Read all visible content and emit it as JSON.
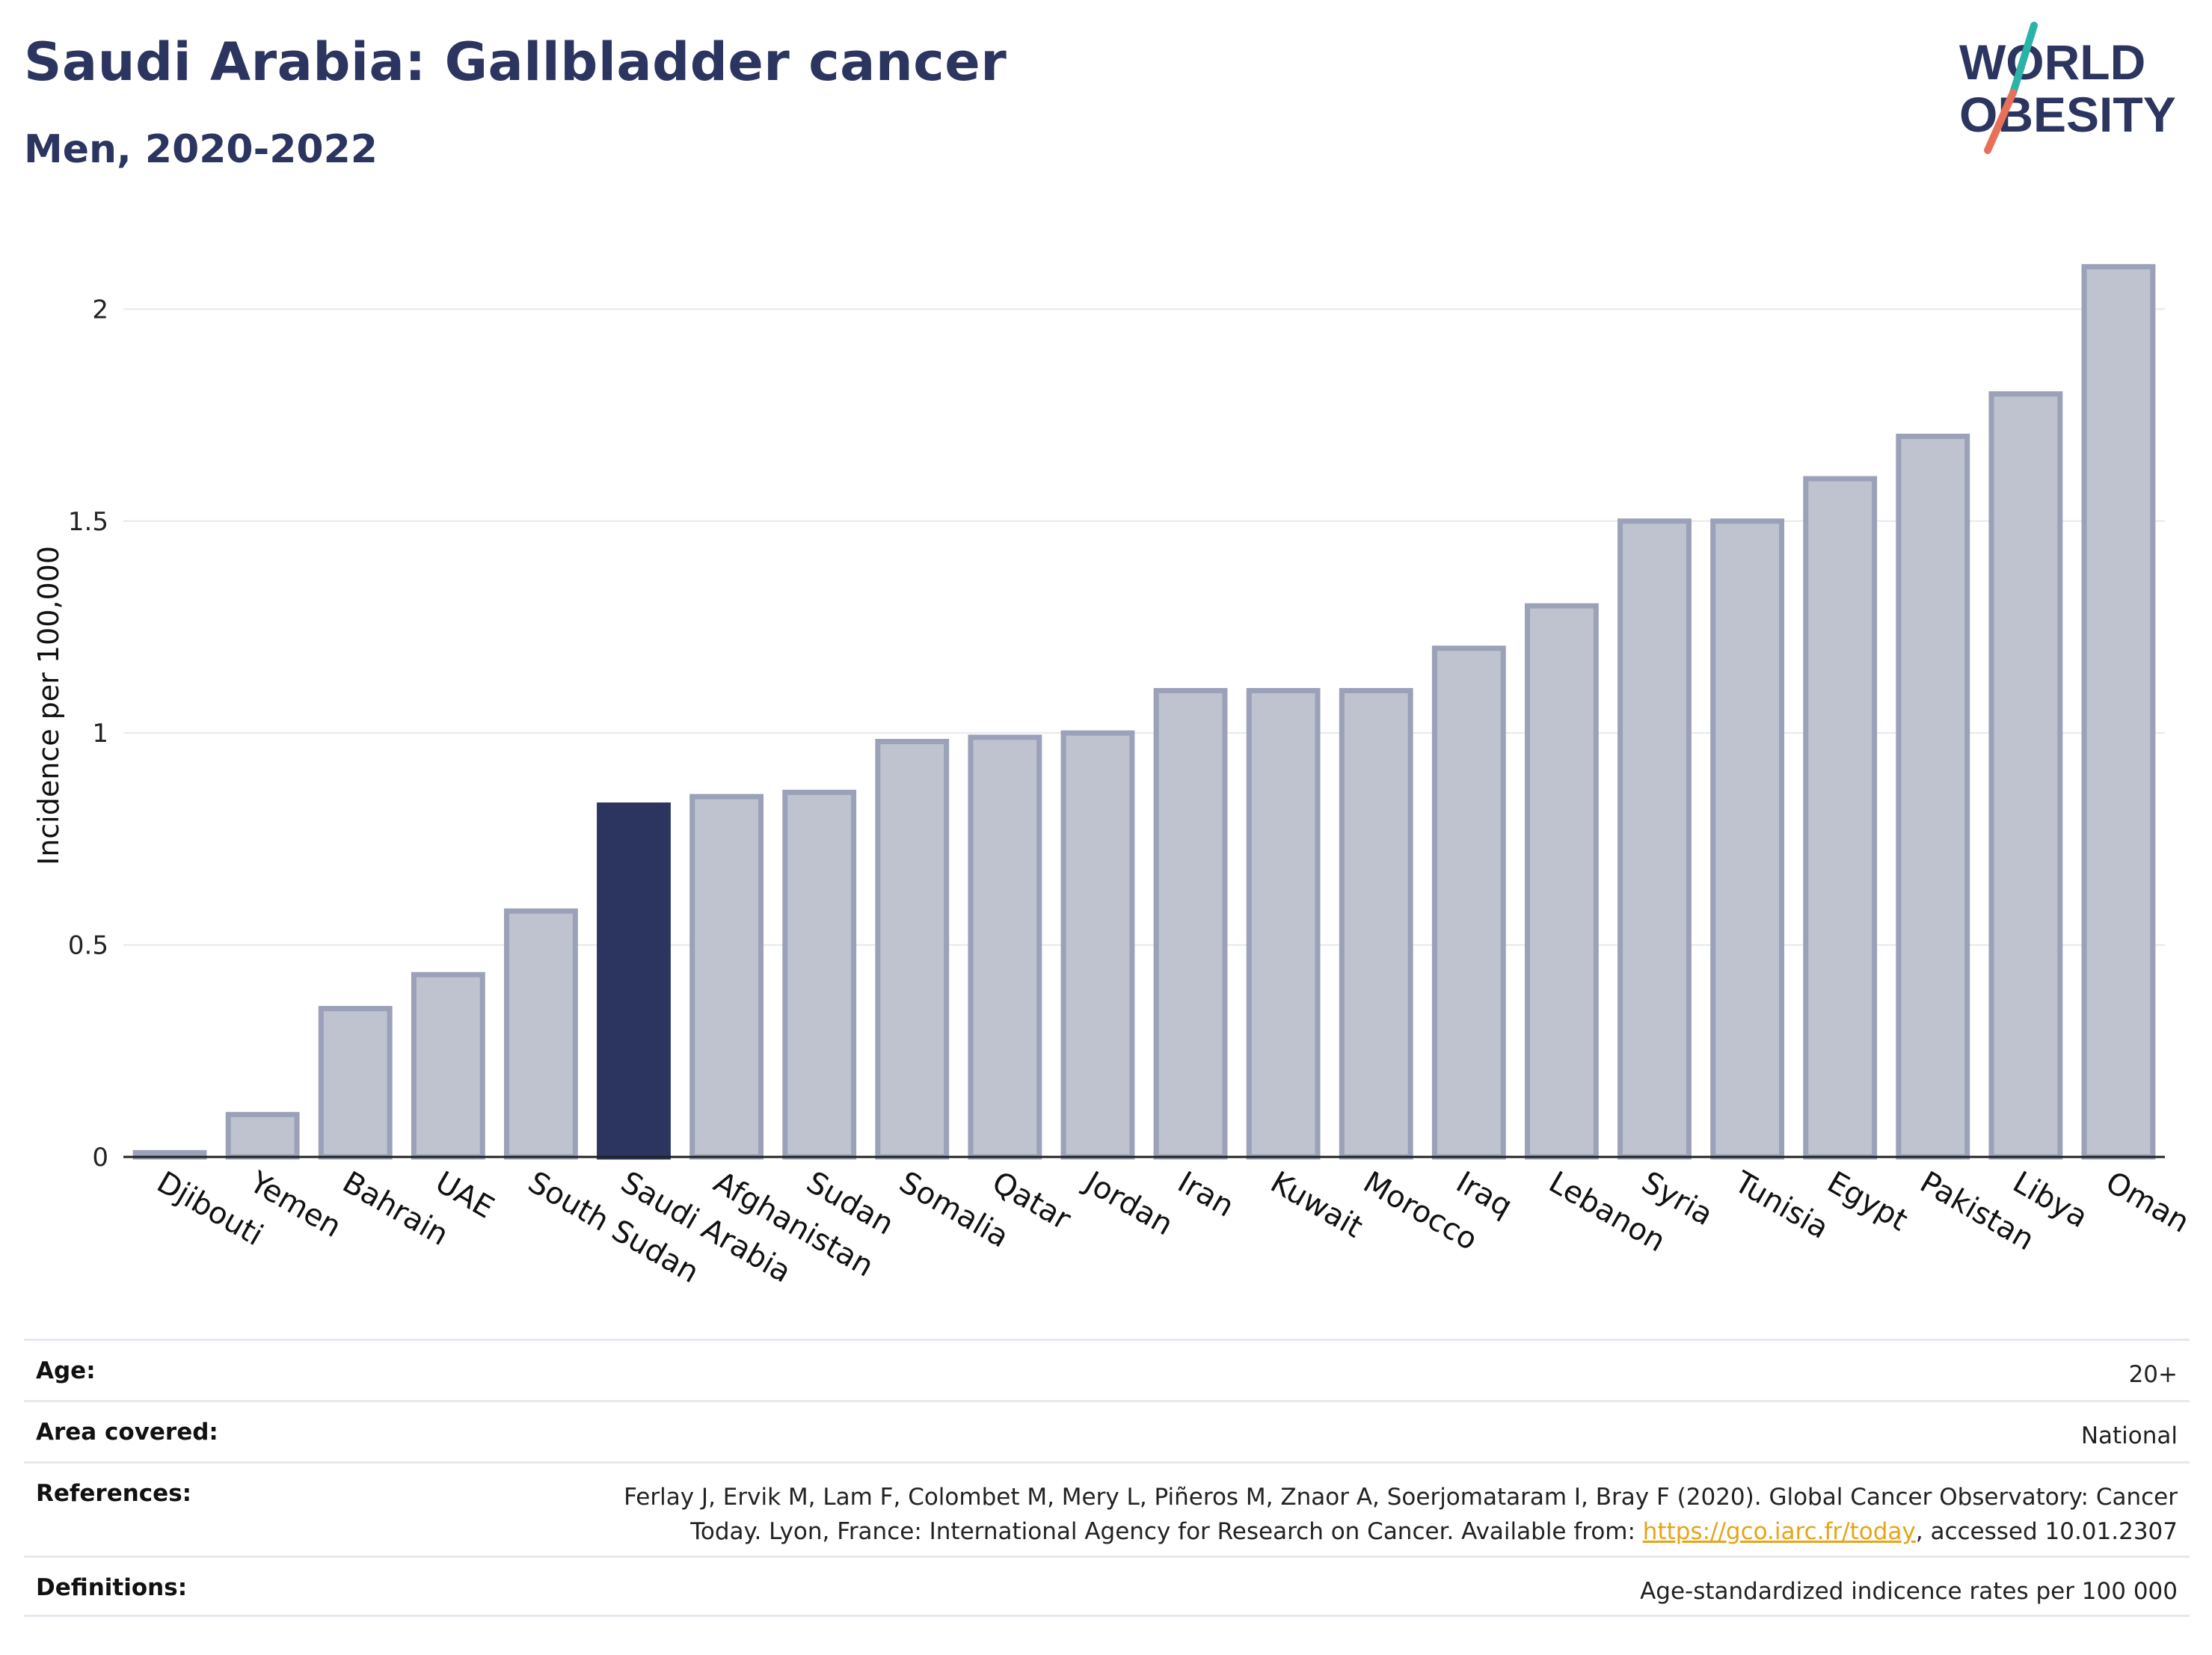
{
  "header": {
    "title": "Saudi Arabia: Gallbladder cancer",
    "subtitle": "Men, 2020-2022"
  },
  "logo": {
    "line1": "WORLD",
    "line2": "OBESITY"
  },
  "colors": {
    "highlight": "#2b3560",
    "bar_fill": "#bfc3d0",
    "bar_stroke": "#9aa1b8",
    "title": "#2b3560",
    "link": "#e8a317",
    "logo_teal": "#2bb3a8",
    "logo_coral": "#e8705a"
  },
  "chart_data": {
    "type": "bar",
    "categories": [
      "Djibouti",
      "Yemen",
      "Bahrain",
      "UAE",
      "South Sudan",
      "Saudi Arabia",
      "Afghanistan",
      "Sudan",
      "Somalia",
      "Qatar",
      "Jordan",
      "Iran",
      "Kuwait",
      "Morocco",
      "Iraq",
      "Lebanon",
      "Syria",
      "Tunisia",
      "Egypt",
      "Pakistan",
      "Libya",
      "Oman"
    ],
    "values": [
      0.01,
      0.1,
      0.35,
      0.43,
      0.58,
      0.83,
      0.85,
      0.86,
      0.98,
      0.99,
      1.0,
      1.1,
      1.1,
      1.1,
      1.2,
      1.3,
      1.5,
      1.5,
      1.6,
      1.7,
      1.8,
      2.1
    ],
    "highlight": "Saudi Arabia",
    "ylabel": "Incidence per 100,000",
    "ylim": [
      0,
      2.2
    ],
    "yticks": [
      0,
      0.5,
      1,
      1.5,
      2
    ],
    "ytick_labels": [
      "0",
      "0.5",
      "1",
      "1.5",
      "2"
    ],
    "grid": true
  },
  "meta": {
    "age_label": "Age:",
    "age_value": "20+",
    "area_label": "Area covered:",
    "area_value": "National",
    "references_label": "References:",
    "references_line1": "Ferlay J, Ervik M, Lam F, Colombet M, Mery L, Piñeros M, Znaor A, Soerjomataram I, Bray F (2020). Global Cancer Observatory: Cancer",
    "references_line2_pre": "Today. Lyon, France: International Agency for Research on Cancer. Available from: ",
    "references_link": "https://gco.iarc.fr/today",
    "references_line2_post": ", accessed 10.01.2307",
    "definitions_label": "Definitions:",
    "definitions_value": "Age-standardized indicence rates per 100 000"
  }
}
